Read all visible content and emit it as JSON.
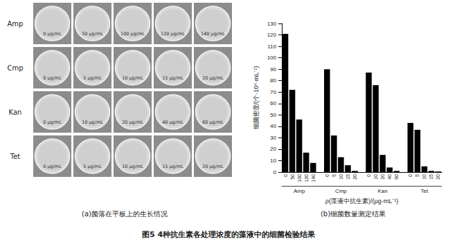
{
  "figure": {
    "caption": "图5 4种抗生素各处理浓度的藻液中的细菌检验结果",
    "panel_a": {
      "caption": "(a)菌落在平板上的生长情况",
      "rows": [
        {
          "label": "Amp",
          "plates": [
            "0 μg/mL",
            "50 μg/mL",
            "100 μg/mL",
            "120 μg/mL",
            "140 μg/mL"
          ]
        },
        {
          "label": "Cmp",
          "plates": [
            "0 μg/mL",
            "5 μg/mL",
            "10 μg/mL",
            "15 μg/mL",
            "20 μg/mL"
          ]
        },
        {
          "label": "Kan",
          "plates": [
            "0 μg/mL",
            "10 μg/mL",
            "20 μg/mL",
            "40 μg/mL",
            "60 μg/mL"
          ]
        },
        {
          "label": "Tet",
          "plates": [
            "0 μg/mL",
            "5 μg/mL",
            "10 μg/mL",
            "15 μg/mL",
            "20 μg/mL"
          ]
        }
      ]
    },
    "panel_b": {
      "caption": "(b)细菌数量测定结果"
    }
  },
  "chart_data": {
    "type": "bar",
    "xlabel": "ρ(藻液中抗生素)/(μg·mL⁻¹)",
    "ylabel": "细菌密度/(个·10⁴·mL⁻¹)",
    "groups": [
      "Amp",
      "Cmp",
      "Kan",
      "Tet"
    ],
    "categories": [
      "0",
      "50",
      "100",
      "120",
      "140",
      null,
      "0",
      "5",
      "10",
      "15",
      "20",
      null,
      "0",
      "10",
      "20",
      "40",
      "60",
      null,
      "0",
      "5",
      "10",
      "15",
      "20"
    ],
    "values": [
      121,
      72,
      46,
      17,
      8,
      null,
      90,
      32,
      13,
      6,
      1,
      null,
      87,
      76,
      15,
      4,
      1,
      null,
      43,
      37,
      5,
      1,
      0.5
    ],
    "color": "#000000",
    "ylim": [
      0,
      130
    ],
    "yticks": [
      0,
      10,
      20,
      30,
      40,
      50,
      60,
      70,
      80,
      90,
      100,
      110,
      120,
      130
    ],
    "grid": false
  }
}
